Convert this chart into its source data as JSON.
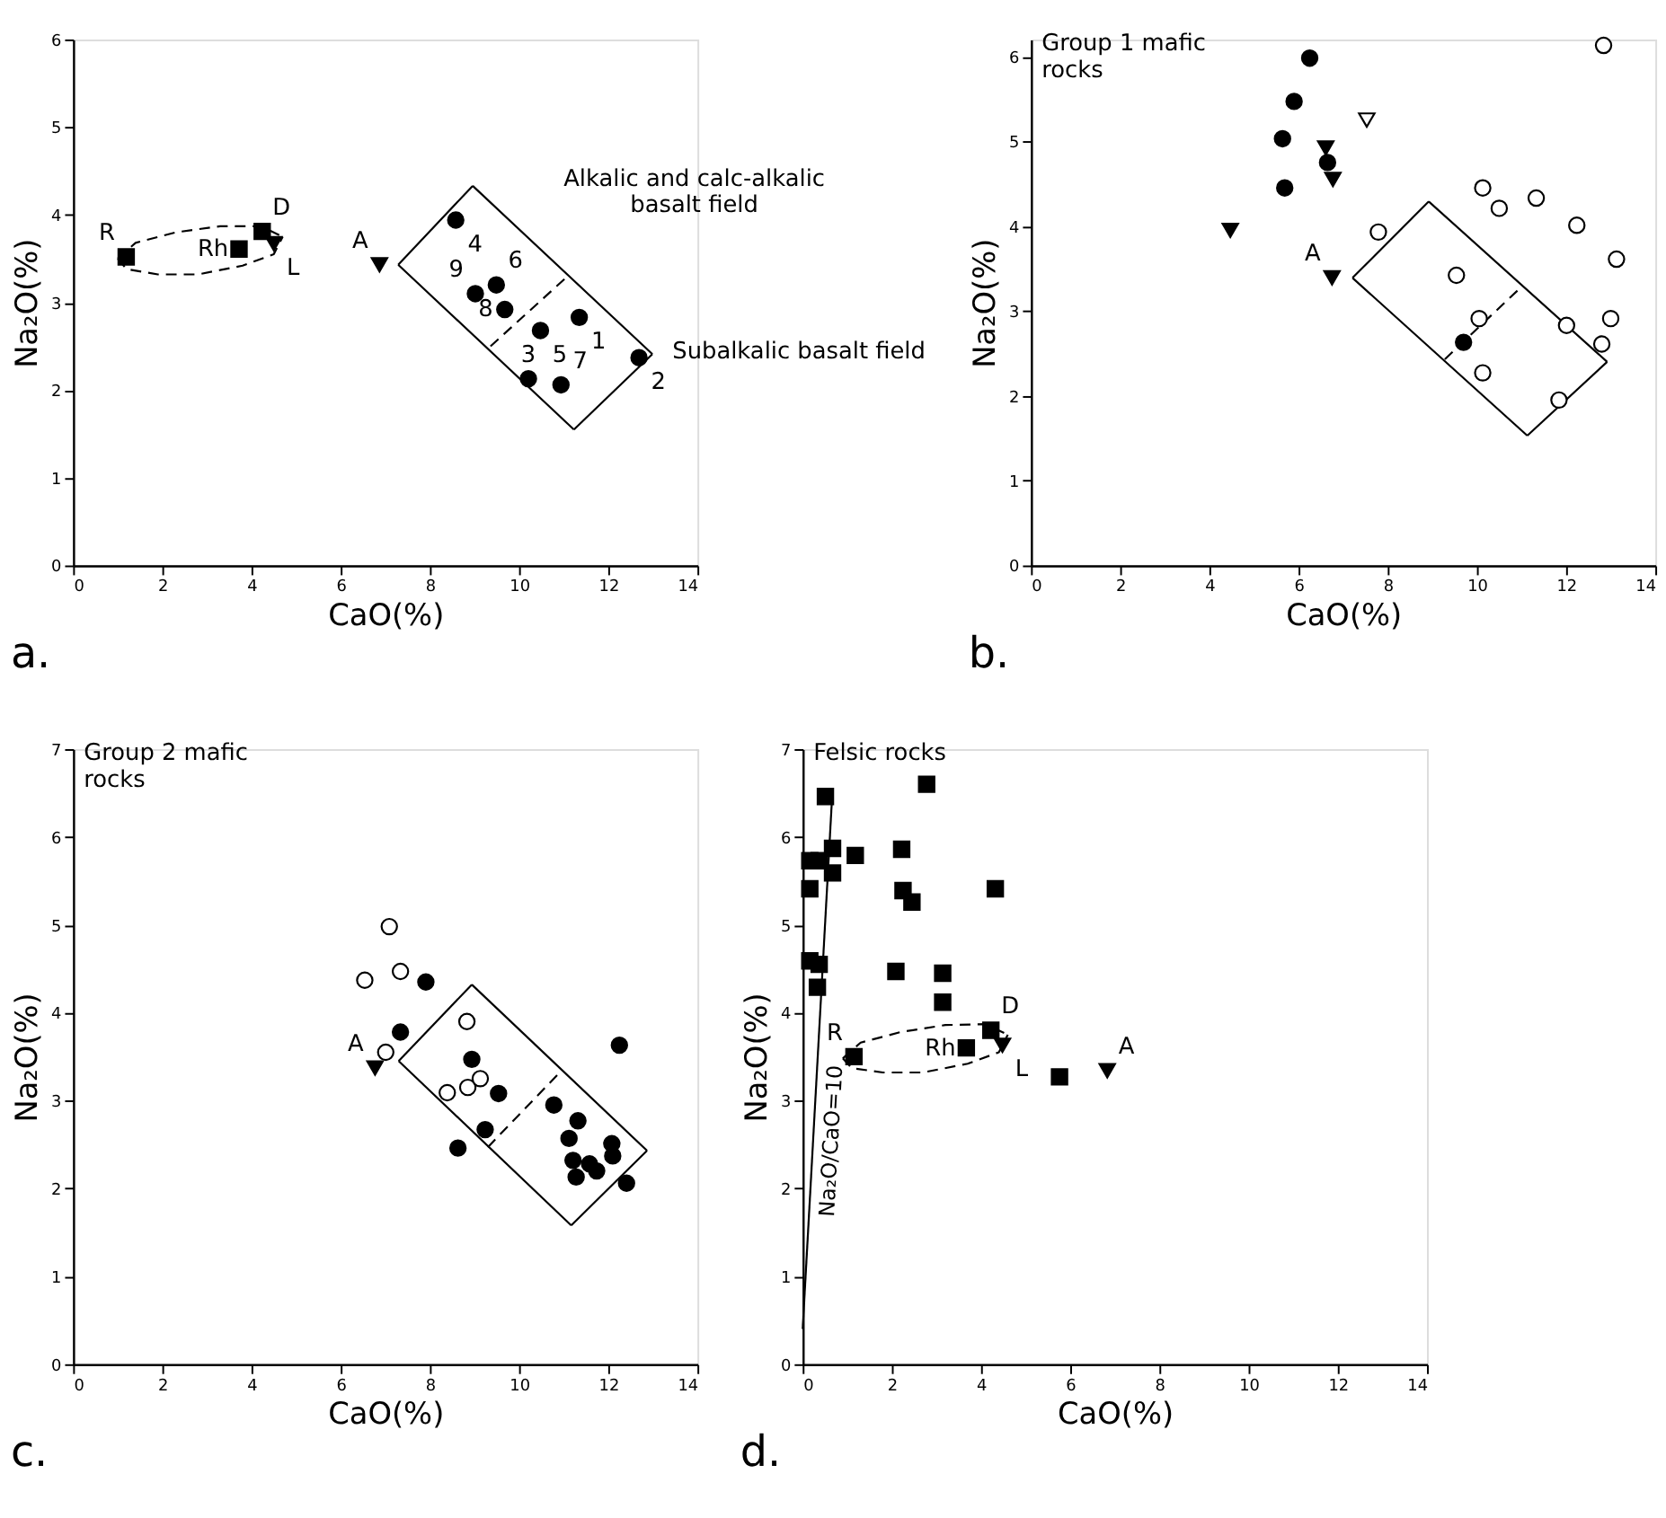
{
  "chart_data": [
    {
      "type": "scatter",
      "xlabel": "CaO(%)",
      "ylabel": "Na₂O(%)",
      "xlim": [
        0,
        14
      ],
      "ylim": [
        0,
        6
      ],
      "xticks": [
        0,
        2,
        4,
        6,
        8,
        10,
        12,
        14
      ],
      "yticks": [
        0,
        1,
        2,
        3,
        4,
        5,
        6
      ],
      "series": [
        {
          "type": "line",
          "color": "#000000",
          "line_style": "solid",
          "x": [
            8.96,
            12.99
          ],
          "values": [
            4.33,
            2.41
          ]
        },
        {
          "type": "line",
          "color": "#000000",
          "line_style": "solid",
          "x": [
            11.23,
            12.99
          ],
          "values": [
            1.55,
            2.41
          ]
        },
        {
          "type": "line",
          "color": "#000000",
          "line_style": "solid",
          "x": [
            7.29,
            11.23
          ],
          "values": [
            3.43,
            1.55
          ]
        },
        {
          "type": "line",
          "color": "#000000",
          "line_style": "solid",
          "x": [
            7.29,
            8.96
          ],
          "values": [
            3.43,
            4.33
          ]
        },
        {
          "type": "line",
          "color": "#000000",
          "line_style": "dashed",
          "x": [
            9.36,
            11.09
          ],
          "values": [
            2.5,
            3.3
          ]
        },
        {
          "type": "line",
          "color": "#000000",
          "line_style": "dashed",
          "x": [
            1.0,
            1.4,
            2.3,
            3.3,
            4.2,
            4.7
          ],
          "values": [
            3.5,
            3.68,
            3.8,
            3.87,
            3.87,
            3.75
          ]
        },
        {
          "type": "line",
          "color": "#000000",
          "line_style": "dashed",
          "x": [
            1.0,
            1.2,
            1.9,
            2.8,
            3.8,
            4.5,
            4.7
          ],
          "values": [
            3.5,
            3.38,
            3.32,
            3.32,
            3.42,
            3.55,
            3.75
          ]
        },
        {
          "type": "scatter",
          "color": "#000000",
          "marker": "circle",
          "x": [
            8.58,
            9.02,
            9.49,
            9.68,
            10.48,
            11.35,
            12.69,
            10.21,
            10.94
          ],
          "values": [
            3.94,
            3.1,
            3.2,
            2.92,
            2.68,
            2.83,
            2.37,
            2.13,
            2.06
          ]
        },
        {
          "type": "scatter",
          "color": "#000000",
          "marker": "square",
          "x": [
            1.19,
            3.72,
            4.24
          ],
          "values": [
            3.52,
            3.61,
            3.81
          ]
        },
        {
          "type": "scatter",
          "color": "#000000",
          "marker": "triangle",
          "x": [
            4.5,
            6.87
          ],
          "values": [
            3.67,
            3.43
          ]
        }
      ],
      "annotations": [
        "a.",
        {
          "text": "4",
          "x": 8.58,
          "y": 3.94
        },
        {
          "text": "6",
          "x": 9.49,
          "y": 3.2
        },
        {
          "text": "9",
          "x": 9.02,
          "y": 3.1
        },
        {
          "text": "8",
          "x": 9.68,
          "y": 2.92
        },
        {
          "text": "5",
          "x": 10.48,
          "y": 2.68
        },
        {
          "text": "1",
          "x": 11.35,
          "y": 2.83
        },
        {
          "text": "3",
          "x": 10.21,
          "y": 2.13
        },
        {
          "text": "2",
          "x": 12.69,
          "y": 2.37
        },
        {
          "text": "7",
          "x": 10.94,
          "y": 2.06
        },
        {
          "text": "R",
          "x": 1.19,
          "y": 3.52
        },
        {
          "text": "Rh",
          "x": 3.72,
          "y": 3.61
        },
        {
          "text": "D",
          "x": 4.24,
          "y": 3.81
        },
        {
          "text": "L",
          "x": 4.5,
          "y": 3.67
        },
        {
          "text": "A",
          "x": 6.87,
          "y": 3.43
        },
        {
          "text": "Alkalic and calc-alkalic basalt field",
          "x": 10.0,
          "y": 3.835
        },
        {
          "text": "Subalkalic basalt field",
          "x": 12.5,
          "y": 2.17
        }
      ]
    },
    {
      "type": "scatter",
      "title": "Group 1 mafic rocks",
      "xlabel": "CaO(%)",
      "ylabel": "Na₂O(%)",
      "xlim": [
        0,
        14
      ],
      "ylim": [
        0,
        6.2
      ],
      "xticks": [
        0,
        2,
        4,
        6,
        8,
        10,
        12,
        14
      ],
      "yticks": [
        0,
        1,
        2,
        3,
        4,
        5,
        6
      ],
      "series": [
        {
          "type": "line",
          "color": "#000000",
          "line_style": "solid",
          "x": [
            8.92,
            12.92
          ],
          "values": [
            4.29,
            2.4
          ]
        },
        {
          "type": "line",
          "color": "#000000",
          "line_style": "solid",
          "x": [
            11.13,
            12.92
          ],
          "values": [
            1.53,
            2.4
          ]
        },
        {
          "type": "line",
          "color": "#000000",
          "line_style": "solid",
          "x": [
            7.21,
            11.13
          ],
          "values": [
            3.39,
            1.53
          ]
        },
        {
          "type": "line",
          "color": "#000000",
          "line_style": "solid",
          "x": [
            7.21,
            8.92
          ],
          "values": [
            3.39,
            4.29
          ]
        },
        {
          "type": "line",
          "color": "#000000",
          "line_style": "dashed",
          "x": [
            9.28,
            10.97
          ],
          "values": [
            2.43,
            3.27
          ]
        },
        {
          "type": "scatter",
          "color": "#000000",
          "marker": "circle",
          "x": [
            6.25,
            5.9,
            5.64,
            5.69,
            6.65,
            9.7
          ],
          "values": [
            5.98,
            5.47,
            5.03,
            4.45,
            4.75,
            2.63
          ]
        },
        {
          "type": "scatter",
          "color": "#000000",
          "marker": "triangle",
          "x": [
            4.47,
            6.61,
            6.77,
            6.75
          ],
          "values": [
            3.95,
            4.92,
            4.55,
            3.39
          ]
        },
        {
          "type": "scatter",
          "color": "#ffffff",
          "marker": "triangle",
          "x": [
            7.53
          ],
          "values": [
            5.25
          ]
        },
        {
          "type": "scatter",
          "color": "#ffffff",
          "marker": "circle",
          "x": [
            12.84,
            7.79,
            10.13,
            10.5,
            11.33,
            12.24,
            13.13,
            9.54,
            10.05,
            12.01,
            13.0,
            12.8,
            10.13,
            11.84
          ],
          "values": [
            6.13,
            3.93,
            4.45,
            4.21,
            4.33,
            4.01,
            3.61,
            3.42,
            2.91,
            2.83,
            2.91,
            2.61,
            2.27,
            1.95
          ]
        }
      ],
      "annotations": [
        "b.",
        {
          "text": "A",
          "x": 6.75,
          "y": 3.39
        }
      ]
    },
    {
      "type": "scatter",
      "title": "Group 2 mafic rocks",
      "xlabel": "CaO(%)",
      "ylabel": "Na₂O(%)",
      "xlim": [
        0,
        14
      ],
      "ylim": [
        0,
        7
      ],
      "xticks": [
        0,
        2,
        4,
        6,
        8,
        10,
        12,
        14
      ],
      "yticks": [
        0,
        1,
        2,
        3,
        4,
        5,
        6,
        7
      ],
      "series": [
        {
          "type": "line",
          "color": "#000000",
          "line_style": "solid",
          "x": [
            8.94,
            12.87
          ],
          "values": [
            4.32,
            2.43
          ]
        },
        {
          "type": "line",
          "color": "#000000",
          "line_style": "solid",
          "x": [
            11.17,
            12.87
          ],
          "values": [
            1.58,
            2.43
          ]
        },
        {
          "type": "line",
          "color": "#000000",
          "line_style": "solid",
          "x": [
            7.3,
            11.17
          ],
          "values": [
            3.45,
            1.58
          ]
        },
        {
          "type": "line",
          "color": "#000000",
          "line_style": "solid",
          "x": [
            7.3,
            8.94
          ],
          "values": [
            3.45,
            4.32
          ]
        },
        {
          "type": "line",
          "color": "#000000",
          "line_style": "dashed",
          "x": [
            9.3,
            10.97
          ],
          "values": [
            2.47,
            3.35
          ]
        },
        {
          "type": "scatter",
          "color": "#ffffff",
          "marker": "circle",
          "x": [
            7.09,
            6.54,
            7.34,
            8.83,
            7.01,
            8.39,
            8.85,
            9.13
          ],
          "values": [
            4.98,
            4.37,
            4.47,
            3.9,
            3.55,
            3.09,
            3.15,
            3.25
          ]
        },
        {
          "type": "scatter",
          "color": "#000000",
          "marker": "circle",
          "x": [
            7.91,
            7.34,
            8.94,
            9.54,
            9.24,
            8.63,
            10.78,
            11.32,
            11.12,
            11.21,
            11.28,
            11.58,
            11.74,
            12.08,
            12.1,
            12.41,
            12.25
          ],
          "values": [
            4.35,
            3.78,
            3.47,
            3.08,
            2.67,
            2.46,
            2.95,
            2.77,
            2.57,
            2.32,
            2.13,
            2.28,
            2.2,
            2.51,
            2.37,
            2.06,
            3.63
          ]
        },
        {
          "type": "scatter",
          "color": "#000000",
          "marker": "triangle",
          "x": [
            6.77
          ],
          "values": [
            3.37
          ]
        }
      ],
      "annotations": [
        "c.",
        {
          "text": "A",
          "x": 6.77,
          "y": 3.37
        }
      ]
    },
    {
      "type": "scatter",
      "title": "Felsic rocks",
      "xlabel": "CaO(%)",
      "ylabel": "Na₂O(%)",
      "xlim": [
        0,
        14
      ],
      "ylim": [
        0,
        7
      ],
      "xticks": [
        0,
        2,
        4,
        6,
        8,
        10,
        12,
        14
      ],
      "yticks": [
        0,
        1,
        2,
        3,
        4,
        5,
        6,
        7
      ],
      "series": [
        {
          "type": "line",
          "name": "Na₂O/CaO=10",
          "color": "#000000",
          "line_style": "solid",
          "x": [
            0,
            0.67
          ],
          "values": [
            0.4,
            6.55
          ]
        },
        {
          "type": "line",
          "color": "#000000",
          "line_style": "dashed",
          "x": [
            0.9,
            1.3,
            2.2,
            3.2,
            4.1,
            4.6
          ],
          "values": [
            3.48,
            3.66,
            3.78,
            3.86,
            3.87,
            3.75
          ]
        },
        {
          "type": "line",
          "color": "#000000",
          "line_style": "dashed",
          "x": [
            0.9,
            1.1,
            1.8,
            2.7,
            3.7,
            4.4,
            4.6
          ],
          "values": [
            3.48,
            3.37,
            3.32,
            3.32,
            3.42,
            3.55,
            3.75
          ]
        },
        {
          "type": "scatter",
          "color": "#000000",
          "marker": "square",
          "x": [
            0.51,
            0.16,
            0.37,
            0.67,
            0.16,
            0.16,
            0.37,
            0.33,
            2.09,
            2.25,
            2.45,
            5.76,
            0.67,
            1.18,
            2.78,
            2.22,
            4.32,
            3.14,
            3.14,
            1.15,
            3.67,
            4.22
          ],
          "values": [
            6.46,
            5.73,
            5.73,
            5.59,
            5.41,
            4.59,
            4.55,
            4.29,
            4.47,
            5.39,
            5.26,
            3.27,
            5.87,
            5.79,
            6.6,
            5.86,
            5.41,
            4.45,
            4.12,
            3.5,
            3.6,
            3.8
          ]
        },
        {
          "type": "scatter",
          "color": "#000000",
          "marker": "triangle",
          "x": [
            4.48,
            6.83
          ],
          "values": [
            3.63,
            3.34
          ]
        }
      ],
      "annotations": [
        "d.",
        {
          "text": "R",
          "x": 1.15,
          "y": 3.5
        },
        {
          "text": "Rh",
          "x": 3.67,
          "y": 3.6
        },
        {
          "text": "D",
          "x": 4.22,
          "y": 3.8
        },
        {
          "text": "L",
          "x": 4.48,
          "y": 3.63
        },
        {
          "text": "A",
          "x": 6.83,
          "y": 3.34
        }
      ]
    }
  ]
}
